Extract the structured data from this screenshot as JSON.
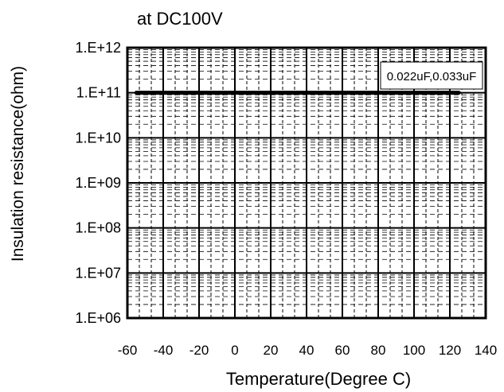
{
  "chart_data": {
    "type": "line",
    "title": "at DC100V",
    "xlabel": "Temperature(Degree C)",
    "ylabel": "Insulation resistance(ohm)",
    "x_ticks": [
      -60,
      -40,
      -20,
      0,
      20,
      40,
      60,
      80,
      100,
      120,
      140
    ],
    "x_tick_labels": [
      "-60",
      "-40",
      "-20",
      "0",
      "20",
      "40",
      "60",
      "80",
      "100",
      "120",
      "140"
    ],
    "xlim": [
      -60,
      140
    ],
    "y_scale": "log",
    "ylim": [
      1000000.0,
      1000000000000.0
    ],
    "y_ticks": [
      1000000.0,
      10000000.0,
      100000000.0,
      1000000000.0,
      10000000000.0,
      100000000000.0,
      1000000000000.0
    ],
    "y_tick_labels": [
      "1.E+06",
      "1.E+07",
      "1.E+08",
      "1.E+09",
      "1.E+10",
      "1.E+11",
      "1.E+12"
    ],
    "grid": true,
    "legend_position": "top-right",
    "series": [
      {
        "name": "0.022uF,0.033uF",
        "color": "#000000",
        "x": [
          -55,
          125
        ],
        "y": [
          100000000000.0,
          100000000000.0
        ]
      }
    ]
  }
}
